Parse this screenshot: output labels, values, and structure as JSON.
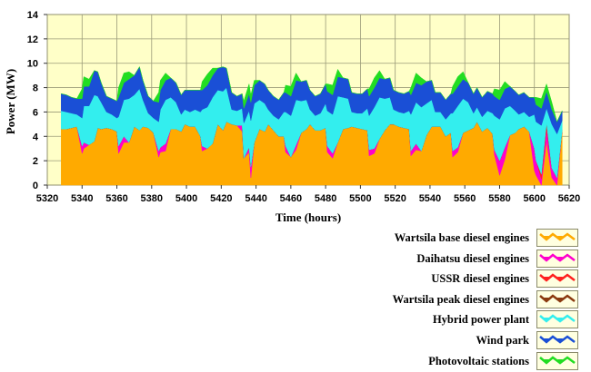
{
  "chart_data": {
    "type": "area",
    "stacked": true,
    "xlabel": "Time (hours)",
    "ylabel": "Power (MW)",
    "xlim": [
      5320,
      5620
    ],
    "ylim": [
      0,
      14
    ],
    "xticks": [
      5320,
      5340,
      5360,
      5380,
      5400,
      5420,
      5440,
      5460,
      5480,
      5500,
      5520,
      5540,
      5560,
      5580,
      5600,
      5620
    ],
    "yticks": [
      0,
      2,
      4,
      6,
      8,
      10,
      12,
      14
    ],
    "grid": true,
    "background": "#ffffc8",
    "legend_position": "bottom-right",
    "x": [
      5328,
      5331,
      5334,
      5337,
      5340,
      5341,
      5344,
      5347,
      5349,
      5351,
      5354,
      5357,
      5360,
      5361,
      5364,
      5367,
      5370,
      5373,
      5375,
      5378,
      5381,
      5384,
      5385,
      5388,
      5391,
      5394,
      5397,
      5399,
      5402,
      5405,
      5408,
      5409,
      5412,
      5415,
      5418,
      5421,
      5423,
      5426,
      5429,
      5432,
      5433,
      5436,
      5437,
      5439,
      5442,
      5445,
      5447,
      5450,
      5453,
      5456,
      5457,
      5460,
      5463,
      5466,
      5469,
      5471,
      5474,
      5477,
      5480,
      5481,
      5484,
      5487,
      5490,
      5493,
      5495,
      5498,
      5501,
      5504,
      5505,
      5508,
      5511,
      5514,
      5517,
      5519,
      5522,
      5525,
      5528,
      5529,
      5532,
      5535,
      5538,
      5541,
      5543,
      5546,
      5549,
      5552,
      5553,
      5556,
      5559,
      5562,
      5565,
      5567,
      5570,
      5573,
      5576,
      5577,
      5580,
      5583,
      5586,
      5589,
      5591,
      5594,
      5597,
      5600,
      5601,
      5604,
      5607,
      5610,
      5613,
      5616
    ],
    "series": [
      {
        "name": "Wartsila base diesel engines",
        "color": "#ffaa00",
        "values": [
          4.6,
          4.6,
          4.7,
          4.8,
          2.6,
          3.0,
          3.3,
          3.6,
          4.7,
          4.6,
          4.7,
          4.6,
          4.4,
          2.6,
          3.5,
          3.5,
          4.8,
          4.5,
          4.8,
          4.7,
          4.3,
          2.3,
          2.7,
          2.8,
          4.6,
          4.6,
          4.4,
          5.0,
          4.8,
          4.8,
          4.0,
          2.8,
          3.0,
          3.4,
          5.0,
          4.5,
          5.2,
          5.0,
          4.9,
          4.4,
          2.2,
          2.7,
          0.6,
          3.5,
          4.6,
          4.4,
          5.0,
          4.5,
          4.0,
          4.0,
          2.7,
          2.3,
          2.9,
          4.3,
          4.6,
          5.0,
          4.5,
          4.5,
          4.7,
          2.7,
          2.2,
          3.5,
          4.6,
          4.7,
          4.8,
          4.7,
          4.6,
          4.5,
          2.4,
          2.6,
          3.8,
          4.5,
          5.0,
          5.0,
          4.8,
          4.7,
          4.6,
          2.4,
          2.9,
          2.8,
          4.1,
          4.8,
          4.8,
          4.8,
          4.0,
          4.3,
          2.3,
          2.7,
          4.3,
          4.5,
          4.7,
          5.2,
          4.4,
          4.7,
          4.2,
          2.5,
          0.8,
          2.1,
          4.1,
          4.3,
          4.6,
          4.8,
          4.4,
          1.2,
          0.8,
          0.0,
          3.6,
          0.6,
          0.0,
          4.5
        ]
      },
      {
        "name": "Daihatsu diesel engines",
        "color": "#ff00cc",
        "values": [
          0.0,
          0.0,
          0.0,
          0.0,
          0.6,
          0.5,
          0.0,
          0.0,
          0.0,
          0.0,
          0.0,
          0.0,
          0.0,
          0.6,
          0.5,
          0.0,
          0.0,
          0.0,
          0.0,
          0.0,
          0.0,
          0.5,
          0.4,
          0.6,
          0.0,
          0.0,
          0.0,
          0.0,
          0.0,
          0.0,
          0.0,
          0.4,
          0.0,
          0.0,
          0.0,
          0.0,
          0.0,
          0.0,
          0.0,
          0.5,
          0.0,
          0.4,
          0.9,
          0.0,
          0.0,
          0.0,
          0.0,
          0.0,
          0.0,
          0.0,
          0.5,
          0.0,
          0.4,
          0.0,
          0.0,
          0.0,
          0.0,
          0.0,
          0.0,
          0.5,
          0.4,
          0.0,
          0.0,
          0.0,
          0.0,
          0.0,
          0.0,
          0.0,
          0.5,
          0.4,
          0.0,
          0.0,
          0.0,
          0.0,
          0.0,
          0.0,
          0.0,
          0.4,
          0.5,
          0.0,
          0.0,
          0.0,
          0.0,
          0.0,
          0.0,
          0.0,
          0.5,
          0.4,
          0.0,
          0.0,
          0.0,
          0.0,
          0.0,
          0.0,
          0.0,
          0.4,
          1.2,
          1.0,
          0.0,
          0.0,
          0.0,
          0.0,
          0.0,
          1.8,
          1.2,
          0.5,
          1.0,
          0.8,
          0.6,
          0.0
        ]
      },
      {
        "name": "USSR diesel engines",
        "color": "#ff2020",
        "values": [
          0,
          0,
          0,
          0,
          0,
          0,
          0,
          0,
          0,
          0,
          0,
          0,
          0,
          0,
          0,
          0,
          0,
          0,
          0,
          0,
          0,
          0,
          0,
          0,
          0,
          0,
          0,
          0,
          0,
          0,
          0,
          0,
          0,
          0,
          0,
          0,
          0,
          0,
          0,
          0,
          0,
          0,
          0,
          0,
          0,
          0,
          0,
          0,
          0,
          0,
          0,
          0,
          0,
          0,
          0,
          0,
          0,
          0,
          0,
          0,
          0,
          0,
          0,
          0,
          0,
          0,
          0,
          0,
          0,
          0,
          0,
          0,
          0,
          0,
          0,
          0,
          0,
          0,
          0,
          0,
          0,
          0,
          0,
          0,
          0,
          0,
          0,
          0,
          0,
          0,
          0,
          0,
          0,
          0,
          0,
          0,
          0,
          0,
          0,
          0,
          0,
          0,
          0,
          0,
          0,
          0.4,
          0.5,
          0,
          0,
          0
        ]
      },
      {
        "name": "Wartsila peak diesel engines",
        "color": "#8b3a10",
        "values": [
          0,
          0,
          0,
          0,
          0,
          0,
          0,
          0,
          0,
          0,
          0,
          0,
          0,
          0,
          0,
          0,
          0,
          0,
          0,
          0,
          0,
          0,
          0,
          0,
          0,
          0,
          0,
          0,
          0,
          0,
          0,
          0,
          0,
          0,
          0,
          0,
          0,
          0,
          0,
          0,
          0,
          0,
          0,
          0,
          0,
          0,
          0,
          0,
          0,
          0,
          0,
          0,
          0,
          0,
          0,
          0,
          0,
          0,
          0,
          0,
          0,
          0,
          0,
          0,
          0,
          0,
          0,
          0,
          0,
          0,
          0,
          0,
          0,
          0,
          0,
          0,
          0,
          0,
          0,
          0,
          0,
          0,
          0,
          0,
          0,
          0,
          0,
          0,
          0,
          0,
          0,
          0,
          0,
          0,
          0,
          0,
          0,
          0,
          0,
          0,
          0,
          0,
          0,
          0,
          0,
          0,
          0,
          0,
          0,
          0
        ]
      },
      {
        "name": "Hybrid power plant",
        "color": "#33eeee",
        "values": [
          1.5,
          1.4,
          1.2,
          1.0,
          2.3,
          3.0,
          3.2,
          3.8,
          2.6,
          2.2,
          1.3,
          1.2,
          1.1,
          2.4,
          3.0,
          3.6,
          2.6,
          3.4,
          2.2,
          1.2,
          1.2,
          2.4,
          3.1,
          3.6,
          2.6,
          2.2,
          1.4,
          1.2,
          1.2,
          1.4,
          2.0,
          3.0,
          3.4,
          3.8,
          2.8,
          3.2,
          2.8,
          1.2,
          1.2,
          1.4,
          2.9,
          3.0,
          3.8,
          3.2,
          2.4,
          2.3,
          1.2,
          1.2,
          1.4,
          2.0,
          2.8,
          3.4,
          3.7,
          2.6,
          2.4,
          1.2,
          1.2,
          1.4,
          2.0,
          2.9,
          3.2,
          3.8,
          2.6,
          2.4,
          1.2,
          1.2,
          1.3,
          1.8,
          2.8,
          3.4,
          3.4,
          2.6,
          2.2,
          1.2,
          1.2,
          1.2,
          1.5,
          3.0,
          3.4,
          3.6,
          2.6,
          2.2,
          1.2,
          1.2,
          1.4,
          1.6,
          3.1,
          3.4,
          2.8,
          2.3,
          1.2,
          1.2,
          1.2,
          1.4,
          1.7,
          2.8,
          3.4,
          3.2,
          2.4,
          1.8,
          1.2,
          1.2,
          1.2,
          2.8,
          3.2,
          4.0,
          1.2,
          3.6,
          3.6,
          0.8
        ]
      },
      {
        "name": "Wind park",
        "color": "#1a4fd6",
        "values": [
          1.4,
          1.4,
          1.3,
          1.3,
          1.6,
          1.6,
          1.6,
          2.0,
          2.0,
          1.6,
          1.3,
          1.3,
          1.4,
          1.6,
          1.4,
          1.6,
          1.6,
          1.8,
          1.6,
          1.4,
          1.4,
          1.6,
          1.6,
          1.6,
          1.6,
          1.6,
          1.6,
          1.6,
          1.8,
          1.6,
          1.8,
          1.6,
          1.8,
          1.8,
          1.8,
          2.0,
          1.6,
          1.4,
          1.2,
          1.2,
          1.2,
          1.4,
          1.5,
          1.5,
          1.6,
          1.6,
          1.6,
          1.6,
          1.6,
          1.6,
          1.6,
          1.6,
          1.6,
          1.6,
          1.6,
          1.6,
          1.6,
          1.6,
          1.6,
          1.6,
          1.6,
          1.6,
          1.6,
          1.6,
          1.6,
          1.6,
          1.6,
          1.6,
          1.6,
          1.6,
          1.6,
          1.6,
          1.6,
          1.6,
          1.6,
          1.6,
          1.6,
          1.6,
          1.6,
          1.8,
          1.8,
          1.6,
          1.6,
          1.6,
          1.6,
          1.6,
          1.6,
          1.6,
          1.6,
          1.6,
          1.6,
          1.6,
          1.6,
          1.6,
          1.6,
          1.6,
          1.6,
          1.6,
          1.6,
          1.6,
          1.6,
          1.6,
          1.6,
          1.4,
          1.4,
          1.4,
          1.4,
          1.2,
          1.0,
          0.8
        ]
      },
      {
        "name": "Photovoltaic stations",
        "color": "#22dd22",
        "values": [
          0,
          0,
          0,
          0,
          0.8,
          0.8,
          0.6,
          0,
          0,
          0,
          0,
          0,
          0,
          0.8,
          0.8,
          0.6,
          0,
          0,
          0,
          0,
          0,
          0.8,
          0.8,
          0.6,
          0,
          0,
          0,
          0,
          0,
          0,
          0,
          0.7,
          0.9,
          0.6,
          0,
          0,
          0,
          0,
          0,
          0,
          0.6,
          0.8,
          0.6,
          0.4,
          0,
          0,
          0,
          0,
          0,
          0,
          0.6,
          0.8,
          0.6,
          0,
          0,
          0,
          0,
          0,
          0,
          0.6,
          0.8,
          0.6,
          0,
          0,
          0,
          0,
          0,
          0,
          0.6,
          0.8,
          0.6,
          0,
          0,
          0,
          0,
          0,
          0,
          0.6,
          0.8,
          0.6,
          0,
          0,
          0,
          0,
          0,
          0,
          0.6,
          0.8,
          0.6,
          0,
          0,
          0,
          0,
          0,
          0,
          0.6,
          0.8,
          0.6,
          0,
          0,
          0,
          0,
          0,
          0,
          0.6,
          0.8,
          0.6,
          0.6,
          0,
          0
        ]
      }
    ]
  }
}
